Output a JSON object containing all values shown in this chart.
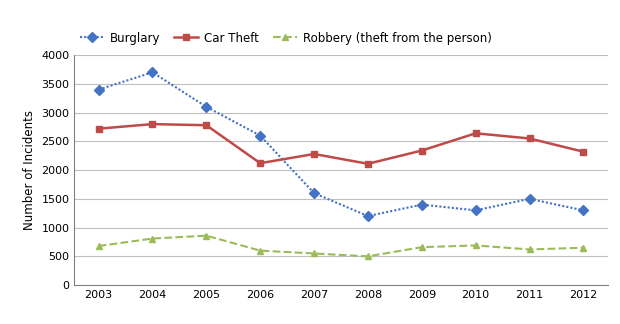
{
  "years": [
    2003,
    2004,
    2005,
    2006,
    2007,
    2008,
    2009,
    2010,
    2011,
    2012
  ],
  "burglary": [
    3400,
    3700,
    3100,
    2600,
    1600,
    1200,
    1400,
    1300,
    1500,
    1300
  ],
  "car_theft": [
    2720,
    2800,
    2780,
    2120,
    2280,
    2110,
    2340,
    2640,
    2550,
    2320
  ],
  "robbery": [
    680,
    810,
    860,
    600,
    550,
    500,
    660,
    690,
    620,
    650
  ],
  "burglary_label": "Burglary",
  "car_theft_label": "Car Theft",
  "robbery_label": "Robbery (theft from the person)",
  "ylabel": "Number of Incidents",
  "ylim": [
    0,
    4000
  ],
  "yticks": [
    0,
    500,
    1000,
    1500,
    2000,
    2500,
    3000,
    3500,
    4000
  ],
  "burglary_color": "#4472C4",
  "car_theft_color": "#BE4B48",
  "robbery_color": "#9BBB59",
  "background_color": "#FFFFFF",
  "grid_color": "#BFBFBF",
  "legend_fontsize": 8.5,
  "axis_fontsize": 8.5,
  "tick_fontsize": 8
}
